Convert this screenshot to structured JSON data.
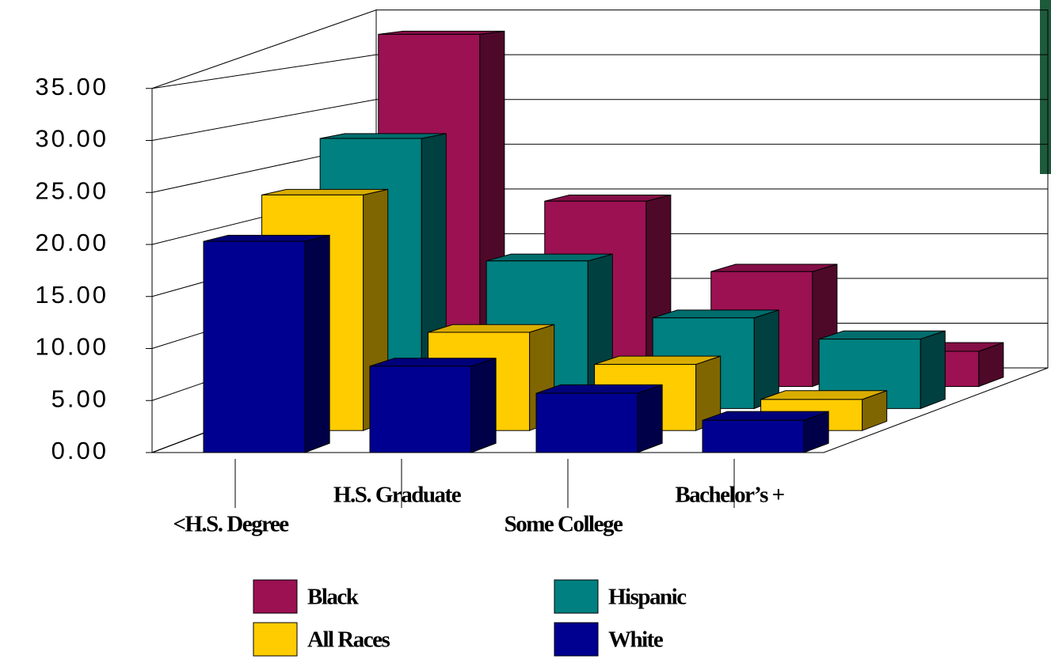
{
  "chart_data": {
    "type": "bar3d",
    "categories": [
      "<H.S. Degree",
      "H.S. Graduate",
      "Some College",
      "Bachelor’s +"
    ],
    "series": [
      {
        "name": "Black",
        "color": "#9b1152",
        "values": [
          38,
          20,
          12.4,
          3.8
        ]
      },
      {
        "name": "Hispanic",
        "color": "#008080",
        "values": [
          28,
          15.3,
          9.4,
          7.2
        ]
      },
      {
        "name": "All Races",
        "color": "#ffcc00",
        "values": [
          23.5,
          9.8,
          6.6,
          3.1
        ]
      },
      {
        "name": "White",
        "color": "#000090",
        "values": [
          20.3,
          8.3,
          5.7,
          3.1
        ]
      }
    ],
    "ylim": [
      0,
      40
    ],
    "yticks": [
      {
        "value": 0,
        "label": "0.00"
      },
      {
        "value": 5,
        "label": "5.00"
      },
      {
        "value": 10,
        "label": "10.00"
      },
      {
        "value": 15,
        "label": "15.00"
      },
      {
        "value": 20,
        "label": "20.00"
      },
      {
        "value": 25,
        "label": "25.00"
      },
      {
        "value": 30,
        "label": "30.00"
      },
      {
        "value": 35,
        "label": "35.00"
      }
    ],
    "grid": true
  }
}
